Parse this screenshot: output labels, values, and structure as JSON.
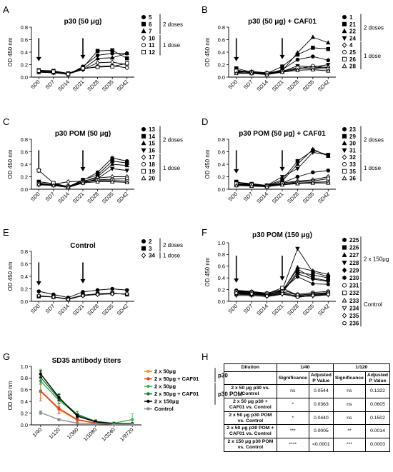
{
  "chart_data": [
    {
      "type": "line",
      "panel": "A",
      "title": "p30 (50 μg)",
      "ylabel": "OD 450 nm",
      "ylim": [
        0,
        0.8
      ],
      "yticks": [
        0.0,
        0.2,
        0.4,
        0.6,
        0.8
      ],
      "categories": [
        "SD0",
        "SD7",
        "SD14",
        "SD21",
        "SD28",
        "SD35",
        "SD42"
      ],
      "arrows": [
        "SD0",
        "SD21"
      ],
      "series": [
        {
          "name": "5",
          "marker": "filled-circle",
          "values": [
            0.08,
            0.08,
            0.04,
            0.17,
            0.35,
            0.38,
            0.38
          ]
        },
        {
          "name": "6",
          "marker": "filled-square",
          "values": [
            0.11,
            0.1,
            0.06,
            0.15,
            0.42,
            0.43,
            0.3
          ]
        },
        {
          "name": "7",
          "marker": "filled-triangle",
          "values": [
            0.08,
            0.07,
            0.05,
            0.13,
            0.3,
            0.31,
            0.38
          ]
        },
        {
          "name": "10",
          "marker": "open-diamond",
          "values": [
            0.08,
            0.07,
            0.05,
            0.12,
            0.23,
            0.24,
            0.2
          ]
        },
        {
          "name": "11",
          "marker": "open-circle",
          "values": [
            0.09,
            0.08,
            0.05,
            0.13,
            0.17,
            0.18,
            0.15
          ]
        },
        {
          "name": "12",
          "marker": "open-square",
          "values": [
            0.1,
            0.09,
            0.05,
            0.14,
            0.16,
            0.17,
            0.22
          ]
        }
      ],
      "groups": [
        {
          "label": "2 doses",
          "members": 3
        },
        {
          "label": "1 dose",
          "members": 3
        }
      ]
    },
    {
      "type": "line",
      "panel": "B",
      "title": "p30 (50 μg) + CAF01",
      "ylabel": "OD 450 nm",
      "ylim": [
        0,
        0.8
      ],
      "yticks": [
        0.0,
        0.2,
        0.4,
        0.6,
        0.8
      ],
      "categories": [
        "SD0",
        "SD7",
        "SD14",
        "SD21",
        "SD28",
        "SD35",
        "SD42"
      ],
      "arrows": [
        "SD0",
        "SD21"
      ],
      "series": [
        {
          "name": "1",
          "marker": "filled-circle",
          "values": [
            0.12,
            0.06,
            0.05,
            0.12,
            0.28,
            0.33,
            0.27
          ]
        },
        {
          "name": "21",
          "marker": "filled-square",
          "values": [
            0.14,
            0.08,
            0.06,
            0.17,
            0.36,
            0.47,
            0.45
          ]
        },
        {
          "name": "22",
          "marker": "filled-triangle",
          "values": [
            0.1,
            0.09,
            0.07,
            0.1,
            0.39,
            0.64,
            0.55
          ]
        },
        {
          "name": "24",
          "marker": "filled-inv-triangle",
          "values": [
            0.09,
            0.07,
            0.05,
            0.09,
            0.18,
            0.16,
            0.2
          ]
        },
        {
          "name": "4",
          "marker": "open-diamond",
          "values": [
            0.08,
            0.08,
            0.05,
            0.1,
            0.14,
            0.15,
            0.16
          ]
        },
        {
          "name": "25",
          "marker": "open-circle",
          "values": [
            0.07,
            0.06,
            0.05,
            0.08,
            0.13,
            0.18,
            0.15
          ]
        },
        {
          "name": "26",
          "marker": "open-square",
          "values": [
            0.1,
            0.07,
            0.06,
            0.09,
            0.15,
            0.14,
            0.13
          ]
        },
        {
          "name": "28",
          "marker": "open-triangle",
          "values": [
            0.06,
            0.06,
            0.04,
            0.08,
            0.11,
            0.12,
            0.1
          ]
        }
      ],
      "groups": [
        {
          "label": "2 doses",
          "members": 4
        },
        {
          "label": "1 dose",
          "members": 4
        }
      ]
    },
    {
      "type": "line",
      "panel": "C",
      "title": "p30 POM (50 μg)",
      "ylabel": "OD 450 nm",
      "ylim": [
        0,
        0.8
      ],
      "yticks": [
        0.0,
        0.2,
        0.4,
        0.6,
        0.8
      ],
      "categories": [
        "SD0",
        "SD7",
        "SD14",
        "SD21",
        "SD28",
        "SD35",
        "SD42"
      ],
      "arrows": [
        "SD0",
        "SD21"
      ],
      "series": [
        {
          "name": "13",
          "marker": "filled-circle",
          "values": [
            0.1,
            0.07,
            0.04,
            0.14,
            0.27,
            0.5,
            0.45
          ]
        },
        {
          "name": "14",
          "marker": "filled-square",
          "values": [
            0.12,
            0.09,
            0.04,
            0.15,
            0.23,
            0.45,
            0.42
          ]
        },
        {
          "name": "15",
          "marker": "filled-triangle",
          "values": [
            0.08,
            0.08,
            0.03,
            0.12,
            0.2,
            0.4,
            0.38
          ]
        },
        {
          "name": "16",
          "marker": "filled-inv-triangle",
          "values": [
            0.07,
            0.06,
            0.03,
            0.1,
            0.17,
            0.33,
            0.3
          ]
        },
        {
          "name": "17",
          "marker": "open-diamond",
          "values": [
            0.07,
            0.08,
            0.12,
            0.13,
            0.18,
            0.2,
            0.2
          ]
        },
        {
          "name": "18",
          "marker": "open-circle",
          "values": [
            0.09,
            0.07,
            0.05,
            0.12,
            0.15,
            0.16,
            0.17
          ]
        },
        {
          "name": "19",
          "marker": "open-square",
          "values": [
            0.3,
            0.1,
            0.04,
            0.11,
            0.14,
            0.14,
            0.13
          ]
        },
        {
          "name": "20",
          "marker": "open-triangle",
          "values": [
            0.08,
            0.06,
            0.03,
            0.1,
            0.12,
            0.12,
            0.11
          ]
        }
      ],
      "groups": [
        {
          "label": "2 doses",
          "members": 4
        },
        {
          "label": "1 dose",
          "members": 4
        }
      ]
    },
    {
      "type": "line",
      "panel": "D",
      "title": "p30 POM (50 μg) + CAF01",
      "ylabel": "OD 450 nm",
      "ylim": [
        0,
        0.8
      ],
      "yticks": [
        0.0,
        0.2,
        0.4,
        0.6,
        0.8
      ],
      "categories": [
        "SD0",
        "SD7",
        "SD14",
        "SD21",
        "SD28",
        "SD35",
        "SD42"
      ],
      "arrows": [
        "SD0",
        "SD21"
      ],
      "series": [
        {
          "name": "23",
          "marker": "filled-circle",
          "values": [
            0.08,
            0.07,
            0.05,
            0.1,
            0.2,
            0.27,
            0.3
          ]
        },
        {
          "name": "29",
          "marker": "filled-square",
          "values": [
            0.12,
            0.07,
            0.06,
            0.15,
            0.45,
            0.62,
            0.55
          ]
        },
        {
          "name": "30",
          "marker": "filled-triangle",
          "values": [
            0.09,
            0.08,
            0.05,
            0.13,
            0.4,
            0.64,
            0.53
          ]
        },
        {
          "name": "31",
          "marker": "filled-inv-triangle",
          "values": [
            0.11,
            0.09,
            0.06,
            0.2,
            0.33,
            0.59,
            0.55
          ]
        },
        {
          "name": "32",
          "marker": "open-diamond",
          "values": [
            0.07,
            0.07,
            0.06,
            0.1,
            0.13,
            0.15,
            0.2
          ]
        },
        {
          "name": "33",
          "marker": "open-circle",
          "values": [
            0.06,
            0.06,
            0.05,
            0.08,
            0.12,
            0.13,
            0.17
          ]
        },
        {
          "name": "35",
          "marker": "open-square",
          "values": [
            0.09,
            0.07,
            0.05,
            0.09,
            0.1,
            0.11,
            0.12
          ]
        },
        {
          "name": "36",
          "marker": "open-triangle",
          "values": [
            0.06,
            0.05,
            0.04,
            0.07,
            0.09,
            0.1,
            0.1
          ]
        }
      ],
      "groups": [
        {
          "label": "2 doses",
          "members": 4
        },
        {
          "label": "1 dose",
          "members": 4
        }
      ]
    },
    {
      "type": "line",
      "panel": "E",
      "title": "Control",
      "ylabel": "OD 450 nm",
      "ylim": [
        0,
        0.8
      ],
      "yticks": [
        0.0,
        0.2,
        0.4,
        0.6,
        0.8
      ],
      "categories": [
        "SD0",
        "SD7",
        "SD14",
        "SD21",
        "SD28",
        "SD35",
        "SD42"
      ],
      "arrows": [
        "SD0",
        "SD21"
      ],
      "series": [
        {
          "name": "2",
          "marker": "filled-circle",
          "values": [
            0.16,
            0.11,
            0.06,
            0.15,
            0.18,
            0.2,
            0.18
          ]
        },
        {
          "name": "3",
          "marker": "filled-square",
          "values": [
            0.08,
            0.07,
            0.04,
            0.1,
            0.12,
            0.13,
            0.11
          ]
        },
        {
          "name": "34",
          "marker": "open-diamond",
          "values": [
            0.09,
            0.07,
            0.03,
            0.09,
            0.11,
            0.12,
            0.12
          ]
        }
      ],
      "groups": [
        {
          "label": "2 doses",
          "members": 2
        },
        {
          "label": "1 dose",
          "members": 1
        }
      ]
    },
    {
      "type": "line",
      "panel": "F",
      "title": "p30 POM  (150 μg)",
      "ylabel": "OD 450 nm",
      "ylim": [
        0,
        1.0
      ],
      "yticks": [
        0.0,
        0.2,
        0.4,
        0.6,
        0.8,
        1.0
      ],
      "categories": [
        "SD0",
        "SD7",
        "SD14",
        "SD21",
        "SD28",
        "SD35",
        "SD42"
      ],
      "arrows": [
        "SD0",
        "SD21"
      ],
      "series": [
        {
          "name": "225",
          "marker": "filled-circle",
          "values": [
            0.17,
            0.15,
            0.12,
            0.18,
            0.55,
            0.4,
            0.35
          ]
        },
        {
          "name": "226",
          "marker": "filled-square",
          "values": [
            0.15,
            0.14,
            0.11,
            0.16,
            0.5,
            0.45,
            0.4
          ]
        },
        {
          "name": "227",
          "marker": "filled-triangle",
          "values": [
            0.18,
            0.16,
            0.13,
            0.17,
            0.58,
            0.52,
            0.46
          ]
        },
        {
          "name": "228",
          "marker": "filled-inv-triangle",
          "values": [
            0.16,
            0.15,
            0.1,
            0.19,
            0.9,
            0.5,
            0.42
          ]
        },
        {
          "name": "229",
          "marker": "filled-diamond",
          "values": [
            0.14,
            0.13,
            0.12,
            0.15,
            0.47,
            0.38,
            0.34
          ]
        },
        {
          "name": "230",
          "marker": "filled-hexagon",
          "values": [
            0.19,
            0.17,
            0.14,
            0.2,
            0.42,
            0.3,
            0.29
          ]
        },
        {
          "name": "231",
          "marker": "open-circle",
          "values": [
            0.17,
            0.16,
            0.14,
            0.19,
            0.12,
            0.15,
            0.17
          ]
        },
        {
          "name": "232",
          "marker": "open-square",
          "values": [
            0.15,
            0.14,
            0.13,
            0.23,
            0.1,
            0.13,
            0.15
          ]
        },
        {
          "name": "233",
          "marker": "open-triangle",
          "values": [
            0.12,
            0.11,
            0.1,
            0.14,
            0.09,
            0.11,
            0.13
          ]
        },
        {
          "name": "234",
          "marker": "open-inv-triangle",
          "values": [
            0.1,
            0.1,
            0.08,
            0.12,
            0.08,
            0.09,
            0.11
          ]
        },
        {
          "name": "235",
          "marker": "open-diamond",
          "values": [
            0.13,
            0.12,
            0.11,
            0.16,
            0.11,
            0.12,
            0.14
          ]
        },
        {
          "name": "236",
          "marker": "open-hexagon",
          "values": [
            0.14,
            0.13,
            0.09,
            0.13,
            0.07,
            0.1,
            0.12
          ]
        }
      ],
      "groups": [
        {
          "label": "2 x 150μg",
          "members": 6
        },
        {
          "label": "Control",
          "members": 6
        }
      ]
    },
    {
      "type": "line",
      "panel": "G",
      "title": "SD35 antibody titers",
      "ylabel": "OD 450 nm",
      "ylim": [
        0,
        1.0
      ],
      "yticks": [
        0.0,
        0.2,
        0.4,
        0.6,
        0.8,
        1.0
      ],
      "categories": [
        "1/40",
        "1/120",
        "1/360",
        "1/1080",
        "1/3240",
        "1/9720"
      ],
      "series": [
        {
          "name": "2 x 50μg",
          "color": "#f7931e",
          "values": [
            0.57,
            0.26,
            0.08,
            0.03,
            0.01,
            0.02
          ],
          "errors": [
            0.12,
            0.07,
            0.03,
            0.01,
            0.01,
            0.01
          ]
        },
        {
          "name": "2 x 50μg + CAF01",
          "color": "#e8392b",
          "values": [
            0.58,
            0.28,
            0.09,
            0.03,
            0.02,
            0.02
          ],
          "errors": [
            0.17,
            0.08,
            0.04,
            0.02,
            0.01,
            0.01
          ]
        },
        {
          "name": "2 x 50μg",
          "color": "#39b54a",
          "values": [
            0.75,
            0.42,
            0.17,
            0.06,
            0.03,
            0.09
          ],
          "errors": [
            0.2,
            0.11,
            0.06,
            0.03,
            0.02,
            0.1
          ]
        },
        {
          "name": "2 x 50μg + CAF01",
          "color": "#1a7a2e",
          "values": [
            0.81,
            0.45,
            0.18,
            0.06,
            0.02,
            0.02
          ],
          "errors": [
            0.1,
            0.08,
            0.05,
            0.02,
            0.01,
            0.01
          ]
        },
        {
          "name": "2 x 150μg",
          "color": "#000000",
          "values": [
            0.87,
            0.47,
            0.15,
            0.05,
            0.02,
            0.02
          ],
          "errors": [
            0.06,
            0.05,
            0.03,
            0.02,
            0.01,
            0.01
          ]
        },
        {
          "name": "Control",
          "color": "#8c8c8c",
          "values": [
            0.21,
            0.09,
            0.03,
            0.02,
            0.01,
            0.01
          ],
          "errors": [
            0.03,
            0.02,
            0.01,
            0.01,
            0.01,
            0.01
          ]
        }
      ],
      "groups": [
        {
          "label": "p30",
          "members": 2
        },
        {
          "label": "p30 POM",
          "members": 3
        }
      ]
    }
  ],
  "panel_letters": [
    "A",
    "B",
    "C",
    "D",
    "E",
    "F",
    "G",
    "H"
  ],
  "table": {
    "panel": "H",
    "type": "table",
    "header_top": [
      "Dilution",
      "1/40",
      "1/120"
    ],
    "header_sub": [
      "Significance",
      "Adjusted P Value",
      "Significance",
      "Adjusted P Value"
    ],
    "rows": [
      {
        "label": "2 x 50 μg p30 vs. Control",
        "cells": [
          "ns",
          "0.0544",
          "ns",
          "0.1322"
        ]
      },
      {
        "label": "2 x 50 μg p30 + CAF01 vs. Control",
        "cells": [
          "*",
          "0.0363",
          "ns",
          "0.0605"
        ]
      },
      {
        "label": "2 x 50 μg p30 POM vs. Control",
        "cells": [
          "*",
          "0.0440",
          "ns",
          "0.1502"
        ]
      },
      {
        "label": "2 x 50 μg p30 POM + CAF01 vs. Control",
        "cells": [
          "***",
          "0.0005",
          "**",
          "0.0014"
        ]
      },
      {
        "label": "2 x 150 μg p30 POM vs. Control",
        "cells": [
          "****",
          "<0.0001",
          "***",
          "0.0003"
        ]
      }
    ]
  }
}
